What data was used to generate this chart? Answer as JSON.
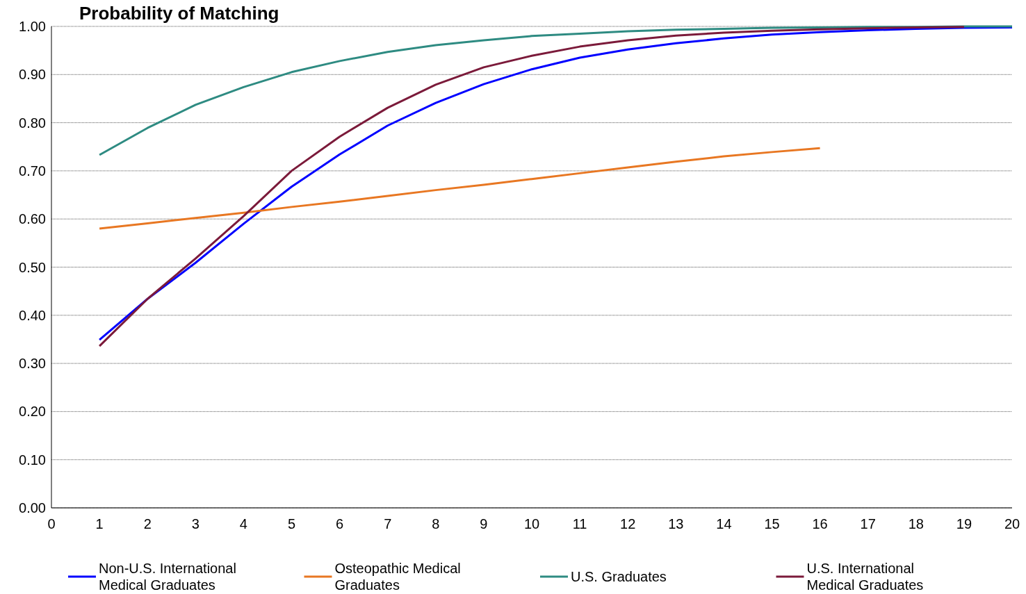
{
  "chart_data": {
    "type": "line",
    "title": "Probability of Matching",
    "x": [
      1,
      2,
      3,
      4,
      5,
      6,
      7,
      8,
      9,
      10,
      11,
      12,
      13,
      14,
      15,
      16,
      17,
      18,
      19,
      20
    ],
    "xlim": [
      0,
      20
    ],
    "xticks": [
      0,
      1,
      2,
      3,
      4,
      5,
      6,
      7,
      8,
      9,
      10,
      11,
      12,
      13,
      14,
      15,
      16,
      17,
      18,
      19,
      20
    ],
    "ylim": [
      0,
      1
    ],
    "yticks": [
      {
        "value": 0,
        "label": "0.00"
      },
      {
        "value": 0.1,
        "label": "0.10"
      },
      {
        "value": 0.2,
        "label": "0.20"
      },
      {
        "value": 0.3,
        "label": "0.30"
      },
      {
        "value": 0.4,
        "label": "0.40"
      },
      {
        "value": 0.5,
        "label": "0.50"
      },
      {
        "value": 0.6,
        "label": "0.60"
      },
      {
        "value": 0.7,
        "label": "0.70"
      },
      {
        "value": 0.8,
        "label": "0.80"
      },
      {
        "value": 0.9,
        "label": "0.90"
      },
      {
        "value": 1,
        "label": "1.00"
      }
    ],
    "grid": "y",
    "legend": "bottom",
    "marker": "none",
    "line_style": "solid",
    "series": [
      {
        "name": "Non-U.S. International Medical Graduates",
        "color": "#0000ff",
        "values": [
          0.349,
          0.434,
          0.509,
          0.59,
          0.667,
          0.734,
          0.794,
          0.841,
          0.88,
          0.911,
          0.935,
          0.952,
          0.965,
          0.975,
          0.983,
          0.988,
          0.992,
          0.995,
          0.997,
          0.998
        ]
      },
      {
        "name": "Osteopathic Medical Graduates",
        "color": "#e87722",
        "values": [
          0.58,
          0.591,
          0.602,
          0.613,
          0.625,
          0.636,
          0.648,
          0.66,
          0.671,
          0.683,
          0.695,
          0.707,
          0.719,
          0.73,
          0.739,
          0.747,
          null,
          null,
          null,
          null
        ]
      },
      {
        "name": "U.S. Graduates",
        "color": "#2e8b82",
        "values": [
          0.733,
          0.789,
          0.837,
          0.874,
          0.905,
          0.928,
          0.947,
          0.961,
          0.971,
          0.98,
          0.985,
          0.99,
          0.993,
          0.995,
          0.997,
          0.998,
          0.999,
          0.999,
          1,
          1
        ]
      },
      {
        "name": "U.S. International Medical Graduates",
        "color": "#7b1a3a",
        "values": [
          0.336,
          0.434,
          0.518,
          0.606,
          0.7,
          0.771,
          0.831,
          0.879,
          0.915,
          0.939,
          0.958,
          0.971,
          0.981,
          0.987,
          0.991,
          0.994,
          0.996,
          0.998,
          0.999,
          null
        ]
      }
    ]
  }
}
